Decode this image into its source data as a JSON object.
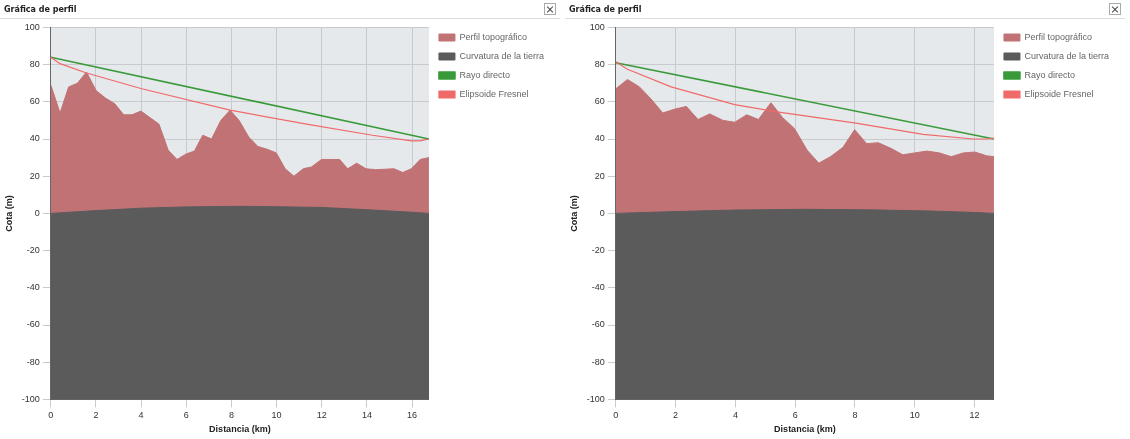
{
  "chart_data": [
    {
      "type": "area",
      "title": "Gráfica de perfil",
      "xlabel": "Distancia (km)",
      "ylabel": "Cota (m)",
      "xlim": [
        0,
        16.75
      ],
      "xticks": [
        0,
        2,
        4,
        6,
        8,
        10,
        12,
        14,
        16
      ],
      "ylim": [
        -100,
        100
      ],
      "yticks": [
        -100,
        -80,
        -60,
        -40,
        -20,
        0,
        20,
        40,
        60,
        80,
        100
      ],
      "grid": true,
      "legend": "top right",
      "series": [
        {
          "name": "Perfil topográfico",
          "color": "#c07274",
          "x": [
            0,
            0.41,
            0.79,
            1.18,
            1.58,
            2.01,
            2.42,
            2.83,
            3.23,
            3.59,
            3.99,
            4.39,
            4.79,
            5.2,
            5.59,
            6.0,
            6.36,
            6.73,
            7.12,
            7.53,
            7.94,
            8.34,
            8.77,
            9.17,
            9.58,
            9.99,
            10.38,
            10.77,
            11.18,
            11.55,
            11.99,
            12.42,
            12.79,
            13.15,
            13.55,
            13.96,
            14.39,
            15.2,
            15.59,
            15.97,
            16.36,
            16.75
          ],
          "values": [
            69,
            54,
            68,
            70,
            76,
            66,
            62,
            59,
            53,
            53,
            55,
            51.5,
            48,
            34,
            29,
            32,
            33.5,
            42,
            40,
            50,
            55.5,
            50,
            41,
            36,
            34.5,
            32.5,
            24,
            20,
            24,
            25,
            29,
            29,
            29,
            24,
            27,
            24,
            23.5,
            24,
            22,
            24,
            29,
            30
          ]
        },
        {
          "name": "Curvatura de la tierra",
          "color": "#5b5b5c",
          "x": [
            0,
            0,
            2,
            4,
            6,
            8.4,
            10,
            12,
            14,
            16,
            16.75,
            16.75
          ],
          "values": [
            -100,
            0,
            1.5,
            2.8,
            3.5,
            3.8,
            3.6,
            3.2,
            2,
            0.6,
            0,
            -100
          ]
        },
        {
          "name": "Rayo directo",
          "type": "line",
          "color": "#3a9a3a",
          "x": [
            0,
            16.75
          ],
          "values": [
            84,
            40
          ]
        },
        {
          "name": "Elipsoide Fresnel",
          "type": "line",
          "color": "#f06a6a",
          "x": [
            0,
            0.41,
            1.58,
            4.03,
            7.94,
            11.33,
            14.25,
            15.97,
            16.36,
            16.75
          ],
          "values": [
            84,
            80.5,
            75.5,
            67,
            55.5,
            48,
            42,
            39,
            39,
            40
          ]
        }
      ]
    },
    {
      "type": "area",
      "title": "Gráfica de perfil",
      "xlabel": "Distancia (km)",
      "ylabel": "Cota (m)",
      "xlim": [
        0,
        12.65
      ],
      "xticks": [
        0,
        2,
        4,
        6,
        8,
        10,
        12
      ],
      "ylim": [
        -100,
        100
      ],
      "yticks": [
        -100,
        -80,
        -60,
        -40,
        -20,
        0,
        20,
        40,
        60,
        80,
        100
      ],
      "grid": true,
      "legend": "top right",
      "series": [
        {
          "name": "Perfil topográfico",
          "color": "#c07274",
          "x": [
            0,
            0.39,
            0.79,
            1.18,
            1.57,
            1.96,
            2.36,
            2.75,
            3.14,
            3.59,
            3.98,
            4.38,
            4.77,
            5.19,
            5.58,
            5.98,
            6.4,
            6.79,
            7.18,
            7.6,
            7.99,
            8.39,
            8.78,
            9.2,
            9.6,
            9.99,
            10.41,
            10.83,
            11.22,
            11.62,
            12.01,
            12.4,
            12.65
          ],
          "values": [
            67,
            72,
            68,
            61.5,
            54,
            56,
            57.5,
            50.5,
            53.5,
            50,
            49,
            53,
            50.5,
            59.5,
            51.5,
            45.5,
            34,
            27,
            30.5,
            35.5,
            45,
            37.5,
            38,
            35,
            31.5,
            32.5,
            33.5,
            32.5,
            30.5,
            32.5,
            33,
            31,
            30.5
          ]
        },
        {
          "name": "Curvatura de la tierra",
          "color": "#5b5b5c",
          "x": [
            0,
            0,
            2,
            4,
            6.3,
            8.5,
            10.5,
            12,
            12.65,
            12.65
          ],
          "values": [
            -100,
            0,
            1,
            1.8,
            2.2,
            1.9,
            1.3,
            0.5,
            0,
            -100
          ]
        },
        {
          "name": "Rayo directo",
          "type": "line",
          "color": "#3a9a3a",
          "x": [
            0,
            12.65
          ],
          "values": [
            81,
            40
          ]
        },
        {
          "name": "Elipsoide Fresnel",
          "type": "line",
          "color": "#f06a6a",
          "x": [
            0,
            0.39,
            1.85,
            3.98,
            5.22,
            8.03,
            10.28,
            11.96,
            12.4,
            12.65
          ],
          "values": [
            81.5,
            77.5,
            68,
            58.5,
            55,
            48.5,
            42.5,
            40,
            40,
            40.5
          ]
        }
      ]
    }
  ]
}
